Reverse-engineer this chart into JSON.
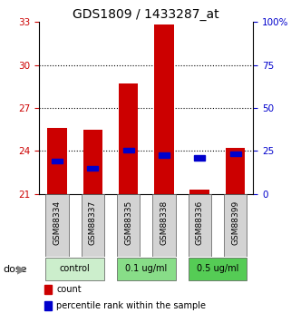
{
  "title": "GDS1809 / 1433287_at",
  "samples": [
    "GSM88334",
    "GSM88337",
    "GSM88335",
    "GSM88338",
    "GSM88336",
    "GSM88399"
  ],
  "bar_values": [
    25.6,
    25.5,
    28.7,
    32.8,
    21.3,
    24.2
  ],
  "blue_values": [
    23.3,
    22.8,
    24.05,
    23.72,
    23.52,
    23.82
  ],
  "bar_bottom": 21.0,
  "ylim_left": [
    21,
    33
  ],
  "ylim_right": [
    0,
    100
  ],
  "yticks_left": [
    21,
    24,
    27,
    30,
    33
  ],
  "yticks_right": [
    0,
    25,
    50,
    75,
    100
  ],
  "ytick_labels_right": [
    "0",
    "25",
    "50",
    "75",
    "100%"
  ],
  "bar_color": "#cc0000",
  "blue_color": "#0000cc",
  "bar_width": 0.55,
  "groups": [
    {
      "label": "control",
      "indices": [
        0,
        1
      ],
      "color": "#cceecc"
    },
    {
      "label": "0.1 ug/ml",
      "indices": [
        2,
        3
      ],
      "color": "#88dd88"
    },
    {
      "label": "0.5 ug/ml",
      "indices": [
        4,
        5
      ],
      "color": "#55cc55"
    }
  ],
  "dose_label": "dose",
  "legend_count_label": "count",
  "legend_percentile_label": "percentile rank within the sample",
  "grid_yticks": [
    24,
    27,
    30
  ],
  "left_tick_color": "#cc0000",
  "right_tick_color": "#0000cc",
  "title_fontsize": 10,
  "tick_label_fontsize": 7.5,
  "sample_label_fontsize": 6.5,
  "dose_fontsize": 7,
  "legend_fontsize": 7
}
